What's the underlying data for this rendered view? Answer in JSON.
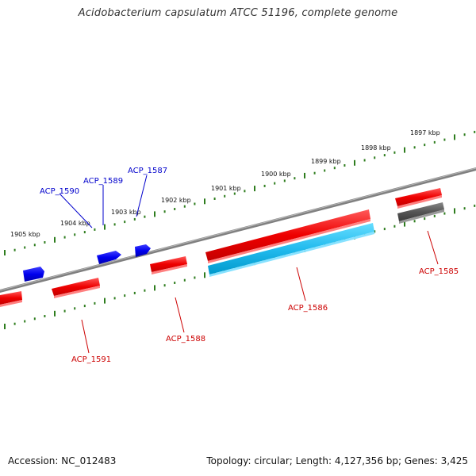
{
  "title": "Acidobacterium capsulatum ATCC 51196, complete genome",
  "footer": {
    "accession": "Accession: NC_012483",
    "genome_info": "Topology: circular; Length: 4,127,356 bp; Genes: 3,425"
  },
  "colors": {
    "backbone": "#808080",
    "tick": "#2e7d1e",
    "forward_gene": "#ff0000",
    "reverse_gene": "#0000ff",
    "rna_gene": "#33ccff",
    "pseudo_gene": "#666666",
    "forward_label": "#cc0000",
    "reverse_label": "#0000cc"
  },
  "scale_labels": [
    "1897 kbp",
    "1898 kbp",
    "1899 kbp",
    "1900 kbp",
    "1901 kbp",
    "1902 kbp",
    "1903 kbp",
    "1904 kbp",
    "1905 kbp"
  ],
  "gene_labels": {
    "acp_1585": "ACP_1585",
    "acp_1586": "ACP_1586",
    "acp_1587": "ACP_1587",
    "acp_1588": "ACP_1588",
    "acp_1589": "ACP_1589",
    "acp_1590": "ACP_1590",
    "acp_1591": "ACP_1591"
  }
}
